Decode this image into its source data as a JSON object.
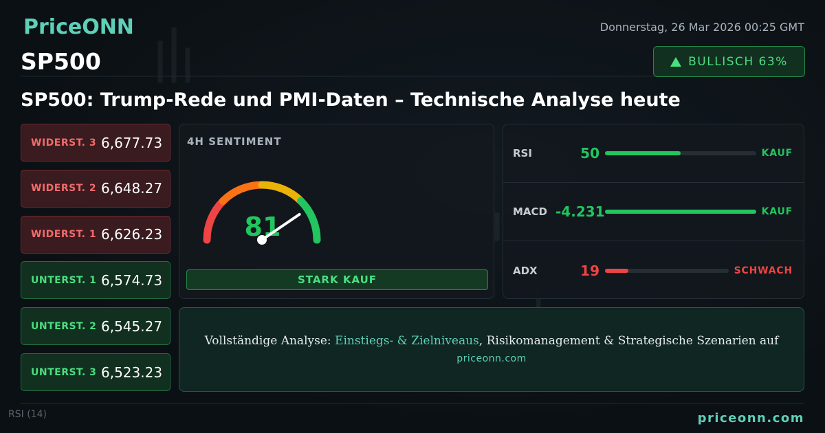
{
  "header": {
    "brand": "PriceONN",
    "date": "Donnerstag, 26 Mar 2026 00:25 GMT",
    "symbol": "SP500",
    "badge": "BULLISCH 63%",
    "title": "SP500: Trump-Rede und PMI-Daten – Technische Analyse heute"
  },
  "levels": [
    {
      "label": "WIDERST. 3",
      "value": "6,677.73",
      "kind": "resistance"
    },
    {
      "label": "WIDERST. 2",
      "value": "6,648.27",
      "kind": "resistance"
    },
    {
      "label": "WIDERST. 1",
      "value": "6,626.23",
      "kind": "resistance"
    },
    {
      "label": "UNTERST. 1",
      "value": "6,574.73",
      "kind": "support"
    },
    {
      "label": "UNTERST. 2",
      "value": "6,545.27",
      "kind": "support"
    },
    {
      "label": "UNTERST. 3",
      "value": "6,523.23",
      "kind": "support"
    }
  ],
  "sentiment": {
    "title": "4H SENTIMENT",
    "score": 81,
    "verdict": "STARK KAUF"
  },
  "indicators": [
    {
      "name": "RSI",
      "value": 50,
      "signal": "KAUF",
      "color": "#22c55e"
    },
    {
      "name": "MACD",
      "value": -4.231,
      "signal": "KAUF",
      "color": "#22c55e"
    },
    {
      "name": "ADX",
      "value": 19,
      "signal": "SCHWACH",
      "color": "#ef4444"
    }
  ],
  "cta": {
    "before": "Vollständige Analyse: ",
    "highlight": "Einstiegs- & Zielniveaus",
    "after": ", Risikomanagement & Strategische Szenarien auf",
    "link": "priceonn.com"
  },
  "background": {
    "indicator_label": "RSI",
    "indicator_period": "(14)"
  },
  "footer": {
    "site": "priceonn.com"
  }
}
